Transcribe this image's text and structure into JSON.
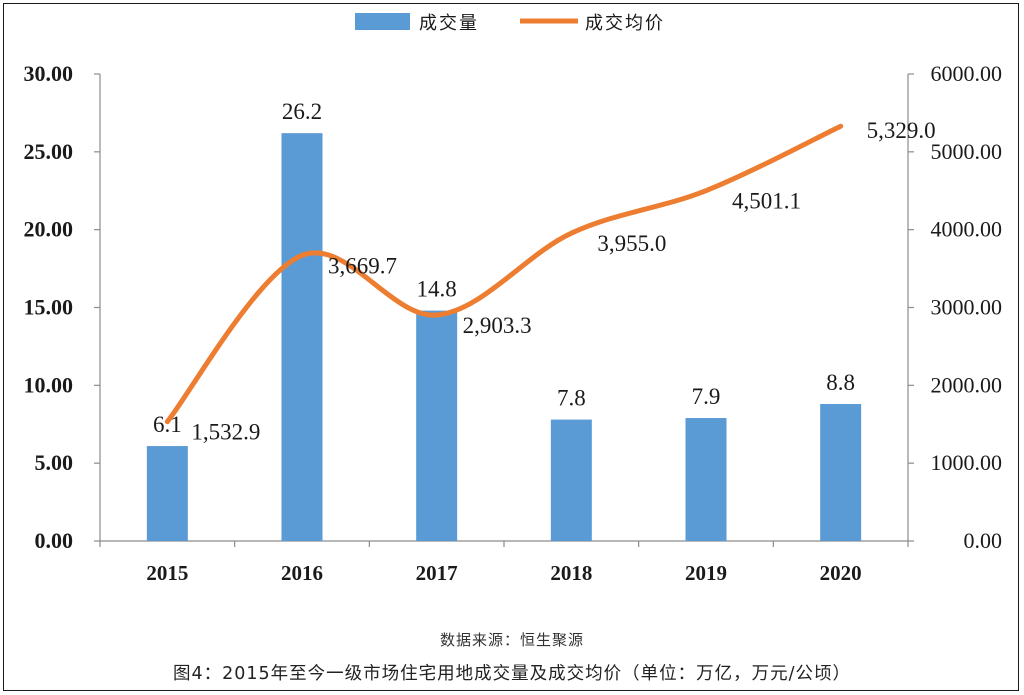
{
  "chart_data": {
    "type": "bar",
    "categories": [
      "2015",
      "2016",
      "2017",
      "2018",
      "2019",
      "2020"
    ],
    "series": [
      {
        "name": "成交量",
        "kind": "bar",
        "axis": "left",
        "color": "#5b9bd5",
        "values": [
          6.1,
          26.2,
          14.8,
          7.8,
          7.9,
          8.8
        ],
        "labels": [
          "6.1",
          "26.2",
          "14.8",
          "7.8",
          "7.9",
          "8.8"
        ]
      },
      {
        "name": "成交均价",
        "kind": "line",
        "axis": "right",
        "color": "#ed7d31",
        "smooth": true,
        "values": [
          1532.9,
          3669.7,
          2903.3,
          3955.0,
          4501.1,
          5329.0
        ],
        "labels": [
          "1,532.9",
          "3,669.7",
          "2,903.3",
          "3,955.0",
          "4,501.1",
          "5,329.0"
        ]
      }
    ],
    "ylim_left": [
      0,
      30
    ],
    "ylim_right": [
      0,
      6000
    ],
    "yticks_left": [
      "0.00",
      "5.00",
      "10.00",
      "15.00",
      "20.00",
      "25.00",
      "30.00"
    ],
    "yticks_right": [
      "0.00",
      "1000.00",
      "2000.00",
      "3000.00",
      "4000.00",
      "5000.00",
      "6000.00"
    ],
    "grid": false,
    "legend_position": "top-center"
  },
  "source": "数据来源：恒生聚源",
  "caption": "图4：2015年至今一级市场住宅用地成交量及成交均价（单位：万亿，万元/公顷）"
}
